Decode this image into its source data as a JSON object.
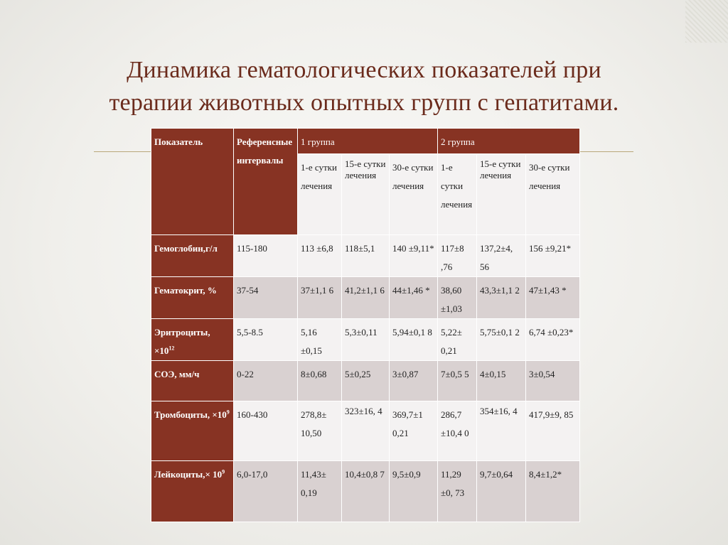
{
  "slide": {
    "title_line1": "Динамика гематологических показателей при",
    "title_line2": "терапии животных опытных групп с гепатитами."
  },
  "table": {
    "headers": {
      "indicator": "Показатель",
      "reference": "Референсные интервалы",
      "group1": "1 группа",
      "group2": "2 группа",
      "day1": "1-е сутки лечения",
      "day15": "15-е сутки лечения",
      "day30": "30-е сутки лечения"
    },
    "rows": [
      {
        "name": "Гемоглобин,г/л",
        "name_sup": "",
        "reference": "115-180",
        "values": [
          "113 ±6,8",
          "118±5,1",
          "140 ±9,11*",
          "117±8 ,76",
          "137,2±4, 56",
          "156 ±9,21*"
        ]
      },
      {
        "name": "Гематокрит, %",
        "name_sup": "",
        "reference": "37-54",
        "values": [
          "37±1,1 6",
          "41,2±1,1 6",
          "44±1,46 *",
          "38,60 ±1,03",
          "43,3±1,1 2",
          "47±1,43 *"
        ]
      },
      {
        "name": "Эритроциты, ×10",
        "name_sup": "12",
        "reference": "5,5-8.5",
        "values": [
          "5,16 ±0,15",
          "5,3±0,11",
          "5,94±0,1 8",
          "5,22± 0,21",
          "5,75±0,1 2",
          "6,74 ±0,23*"
        ]
      },
      {
        "name": "СОЭ, мм/ч",
        "name_sup": "",
        "reference": "0-22",
        "values": [
          "8±0,68",
          "5±0,25",
          "3±0,87",
          "7±0,5 5",
          "4±0,15",
          "3±0,54"
        ]
      },
      {
        "name": "Тромбоциты, ×10",
        "name_sup": "9",
        "reference": "160-430",
        "values": [
          "278,8± 10,50",
          "323±16, 4",
          "369,7±1 0,21",
          "286,7 ±10,4 0",
          "354±16, 4",
          "417,9±9, 85"
        ]
      },
      {
        "name": "Лейкоциты,× 10",
        "name_sup": "9",
        "reference": "6,0-17,0",
        "values": [
          "11,43± 0,19",
          "10,4±0,8 7",
          "9,5±0,9",
          "11,29 ±0, 73",
          "9,7±0,64",
          "8,4±1,2*"
        ]
      }
    ]
  }
}
